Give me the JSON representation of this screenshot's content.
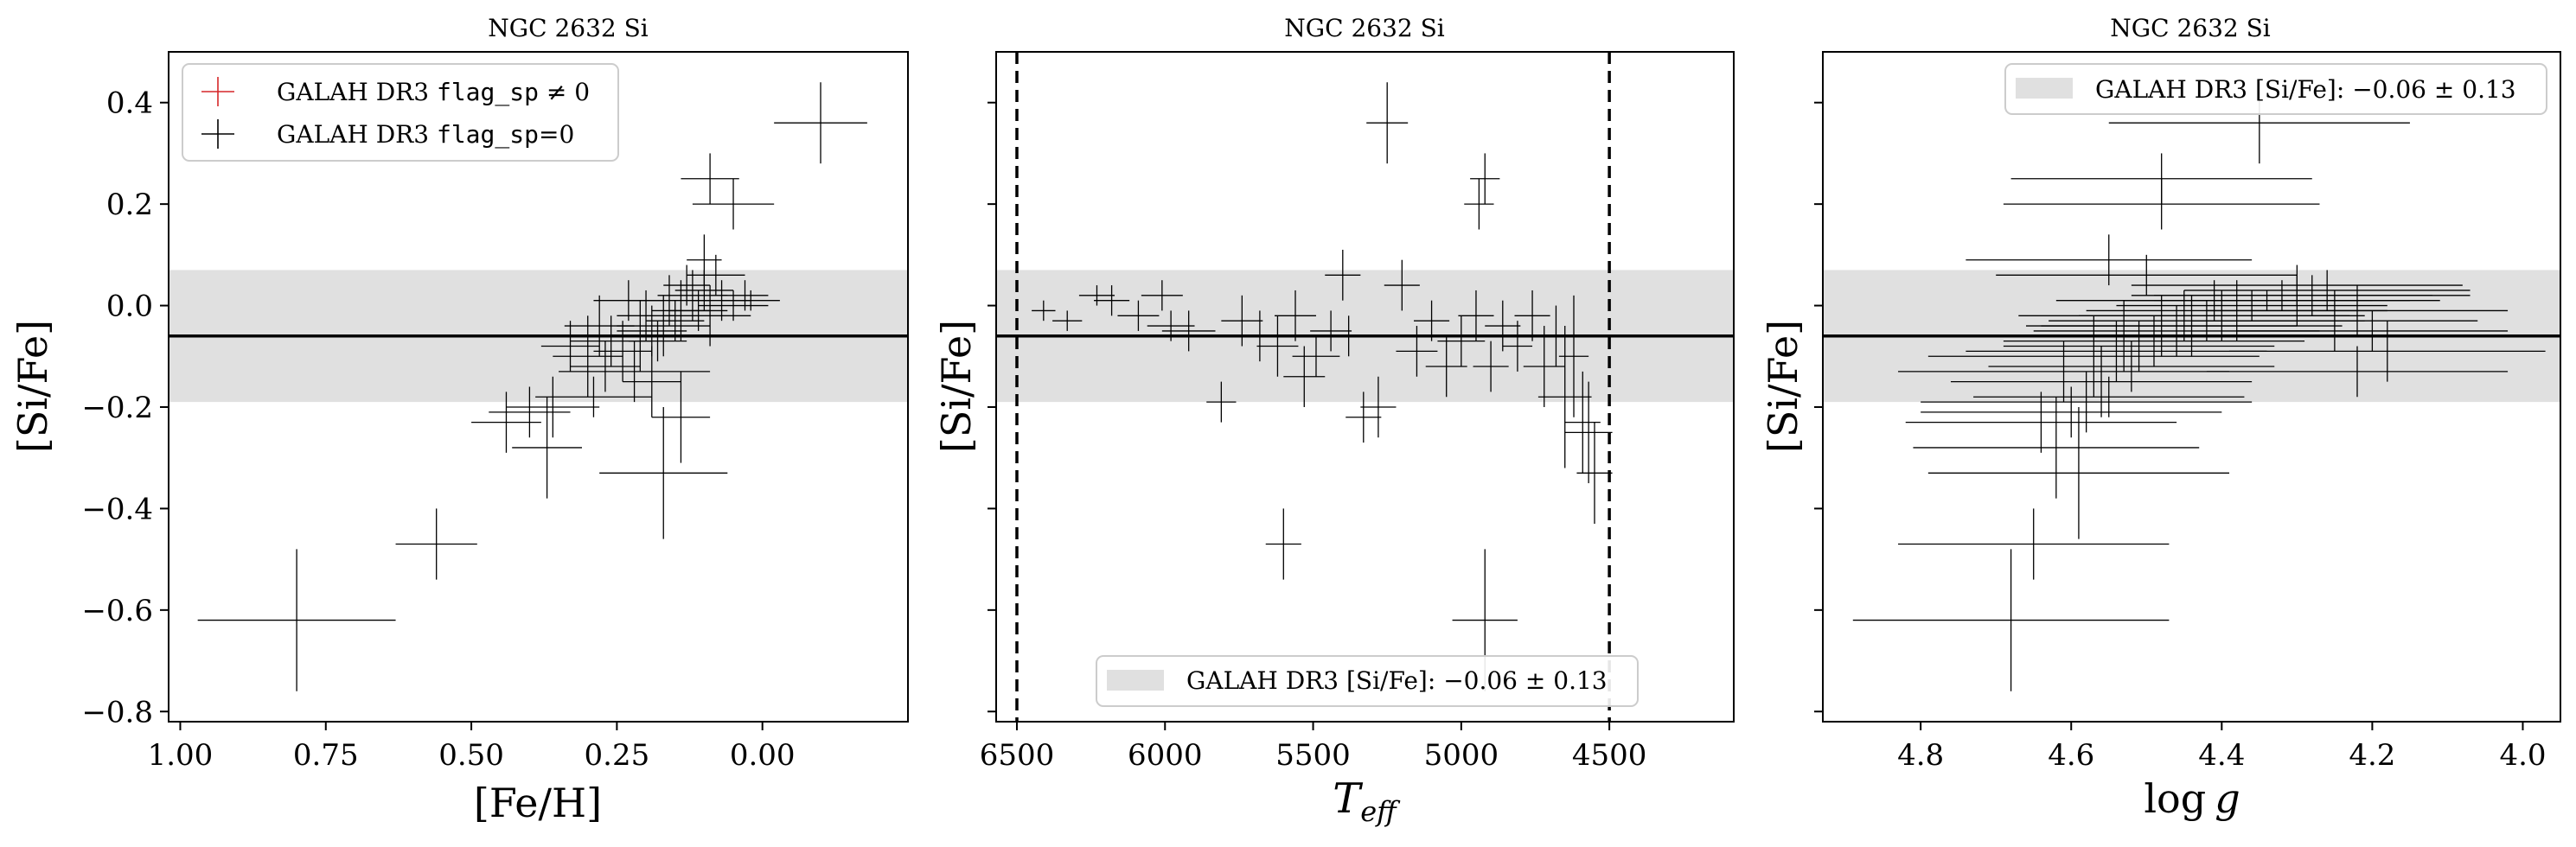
{
  "colors": {
    "flagged": "#d62728",
    "unflagged": "#000000",
    "band": "#e0e0e0",
    "mean_line": "#000000",
    "teff_limits": "#000000"
  },
  "chart_data": [
    {
      "type": "scatter",
      "title": "NGC 2632 Si",
      "xlabel": "[Fe/H]",
      "ylabel": "[Si/Fe]",
      "xlim": [
        1.02,
        -0.25
      ],
      "ylim": [
        -0.82,
        0.5
      ],
      "x_inverted": true,
      "xticks": [
        "1.00",
        "0.75",
        "0.50",
        "0.25",
        "0.00"
      ],
      "yticks": [
        "−0.8",
        "−0.6",
        "−0.4",
        "−0.2",
        "0.0",
        "0.2",
        "0.4"
      ],
      "reference": {
        "mean": -0.06,
        "sigma": 0.13
      },
      "legend": {
        "position": "upper left",
        "entries": [
          {
            "prefix": "GALAH DR3 ",
            "code": "flag_sp",
            "suffix": " ≠ 0",
            "color": "#d62728"
          },
          {
            "prefix": "GALAH DR3 ",
            "code": "flag_sp",
            "suffix": "=0",
            "color": "#000000"
          }
        ]
      },
      "series": [
        {
          "name": "GALAH DR3 flag_sp=0",
          "points": [
            {
              "x": 0.8,
              "y": -0.62,
              "xerr": 0.17,
              "yerr": 0.14
            },
            {
              "x": 0.56,
              "y": -0.47,
              "xerr": 0.07,
              "yerr": 0.07
            },
            {
              "x": 0.17,
              "y": -0.33,
              "xerr": 0.11,
              "yerr": 0.13
            },
            {
              "x": 0.37,
              "y": -0.28,
              "xerr": 0.06,
              "yerr": 0.1
            },
            {
              "x": 0.44,
              "y": -0.23,
              "xerr": 0.06,
              "yerr": 0.06
            },
            {
              "x": 0.4,
              "y": -0.21,
              "xerr": 0.07,
              "yerr": 0.05
            },
            {
              "x": 0.36,
              "y": -0.2,
              "xerr": 0.08,
              "yerr": 0.06
            },
            {
              "x": 0.29,
              "y": -0.18,
              "xerr": 0.1,
              "yerr": 0.04
            },
            {
              "x": 0.14,
              "y": -0.22,
              "xerr": 0.05,
              "yerr": 0.09
            },
            {
              "x": 0.22,
              "y": -0.13,
              "xerr": 0.13,
              "yerr": 0.06
            },
            {
              "x": 0.19,
              "y": -0.15,
              "xerr": 0.05,
              "yerr": 0.07
            },
            {
              "x": 0.3,
              "y": -0.1,
              "xerr": 0.06,
              "yerr": 0.08
            },
            {
              "x": 0.26,
              "y": -0.07,
              "xerr": 0.07,
              "yerr": 0.05
            },
            {
              "x": 0.24,
              "y": -0.09,
              "xerr": 0.05,
              "yerr": 0.06
            },
            {
              "x": 0.21,
              "y": -0.06,
              "xerr": 0.08,
              "yerr": 0.07
            },
            {
              "x": 0.19,
              "y": -0.05,
              "xerr": 0.06,
              "yerr": 0.05
            },
            {
              "x": 0.17,
              "y": -0.04,
              "xerr": 0.08,
              "yerr": 0.06
            },
            {
              "x": 0.2,
              "y": -0.02,
              "xerr": 0.05,
              "yerr": 0.05
            },
            {
              "x": 0.23,
              "y": 0.01,
              "xerr": 0.06,
              "yerr": 0.04
            },
            {
              "x": 0.16,
              "y": 0.01,
              "xerr": 0.07,
              "yerr": 0.05
            },
            {
              "x": 0.14,
              "y": -0.01,
              "xerr": 0.05,
              "yerr": 0.06
            },
            {
              "x": 0.12,
              "y": 0.02,
              "xerr": 0.06,
              "yerr": 0.05
            },
            {
              "x": 0.1,
              "y": 0.03,
              "xerr": 0.05,
              "yerr": 0.04
            },
            {
              "x": 0.09,
              "y": -0.02,
              "xerr": 0.07,
              "yerr": 0.06
            },
            {
              "x": 0.07,
              "y": 0.01,
              "xerr": 0.05,
              "yerr": 0.04
            },
            {
              "x": 0.05,
              "y": 0.0,
              "xerr": 0.06,
              "yerr": 0.03
            },
            {
              "x": 0.03,
              "y": 0.02,
              "xerr": 0.04,
              "yerr": 0.03
            },
            {
              "x": 0.02,
              "y": 0.01,
              "xerr": 0.05,
              "yerr": 0.02
            },
            {
              "x": 0.28,
              "y": -0.04,
              "xerr": 0.06,
              "yerr": 0.06
            },
            {
              "x": 0.33,
              "y": -0.08,
              "xerr": 0.05,
              "yerr": 0.05
            },
            {
              "x": 0.27,
              "y": -0.12,
              "xerr": 0.06,
              "yerr": 0.05
            },
            {
              "x": 0.18,
              "y": -0.07,
              "xerr": 0.05,
              "yerr": 0.04
            },
            {
              "x": 0.15,
              "y": -0.03,
              "xerr": 0.05,
              "yerr": 0.04
            },
            {
              "x": 0.11,
              "y": -0.01,
              "xerr": 0.05,
              "yerr": 0.04
            },
            {
              "x": 0.13,
              "y": 0.04,
              "xerr": 0.04,
              "yerr": 0.04
            },
            {
              "x": 0.08,
              "y": 0.06,
              "xerr": 0.05,
              "yerr": 0.04
            },
            {
              "x": 0.1,
              "y": 0.09,
              "xerr": 0.03,
              "yerr": 0.05
            },
            {
              "x": 0.09,
              "y": 0.25,
              "xerr": 0.05,
              "yerr": 0.05
            },
            {
              "x": 0.05,
              "y": 0.2,
              "xerr": 0.07,
              "yerr": 0.05
            },
            {
              "x": -0.1,
              "y": 0.36,
              "xerr": 0.08,
              "yerr": 0.08
            }
          ]
        }
      ]
    },
    {
      "type": "scatter",
      "title": "NGC 2632 Si",
      "xlabel_main": "T",
      "xlabel_sub": "eff",
      "ylabel": "[Si/Fe]",
      "xlim": [
        6570,
        4080
      ],
      "ylim": [
        -0.82,
        0.5
      ],
      "x_inverted": true,
      "xticks": [
        "6500",
        "6000",
        "5500",
        "5000",
        "4500"
      ],
      "vlines": [
        6500,
        4500
      ],
      "reference": {
        "mean": -0.06,
        "sigma": 0.13
      },
      "legend": {
        "position": "lower center",
        "prefix": "GALAH DR3 [Si/Fe]: ",
        "value": "−0.06 ± 0.13"
      },
      "series": [
        {
          "name": "GALAH DR3 flag_sp=0",
          "points": [
            {
              "x": 6410,
              "y": -0.01,
              "xerr": 40,
              "yerr": 0.02
            },
            {
              "x": 6330,
              "y": -0.03,
              "xerr": 50,
              "yerr": 0.02
            },
            {
              "x": 6230,
              "y": 0.02,
              "xerr": 60,
              "yerr": 0.02
            },
            {
              "x": 6180,
              "y": 0.01,
              "xerr": 60,
              "yerr": 0.03
            },
            {
              "x": 6090,
              "y": -0.02,
              "xerr": 70,
              "yerr": 0.03
            },
            {
              "x": 6010,
              "y": 0.02,
              "xerr": 70,
              "yerr": 0.03
            },
            {
              "x": 5980,
              "y": -0.04,
              "xerr": 80,
              "yerr": 0.03
            },
            {
              "x": 5920,
              "y": -0.05,
              "xerr": 90,
              "yerr": 0.04
            },
            {
              "x": 5810,
              "y": -0.19,
              "xerr": 50,
              "yerr": 0.04
            },
            {
              "x": 5740,
              "y": -0.03,
              "xerr": 70,
              "yerr": 0.05
            },
            {
              "x": 5680,
              "y": -0.06,
              "xerr": 80,
              "yerr": 0.05
            },
            {
              "x": 5620,
              "y": -0.08,
              "xerr": 70,
              "yerr": 0.06
            },
            {
              "x": 5600,
              "y": -0.47,
              "xerr": 60,
              "yerr": 0.07
            },
            {
              "x": 5560,
              "y": -0.02,
              "xerr": 70,
              "yerr": 0.05
            },
            {
              "x": 5530,
              "y": -0.14,
              "xerr": 70,
              "yerr": 0.06
            },
            {
              "x": 5490,
              "y": -0.1,
              "xerr": 80,
              "yerr": 0.04
            },
            {
              "x": 5440,
              "y": -0.05,
              "xerr": 70,
              "yerr": 0.04
            },
            {
              "x": 5400,
              "y": 0.06,
              "xerr": 60,
              "yerr": 0.05
            },
            {
              "x": 5380,
              "y": -0.06,
              "xerr": 80,
              "yerr": 0.04
            },
            {
              "x": 5330,
              "y": -0.22,
              "xerr": 60,
              "yerr": 0.05
            },
            {
              "x": 5280,
              "y": -0.2,
              "xerr": 60,
              "yerr": 0.06
            },
            {
              "x": 5250,
              "y": 0.36,
              "xerr": 70,
              "yerr": 0.08
            },
            {
              "x": 5200,
              "y": 0.04,
              "xerr": 60,
              "yerr": 0.05
            },
            {
              "x": 5150,
              "y": -0.09,
              "xerr": 70,
              "yerr": 0.05
            },
            {
              "x": 5100,
              "y": -0.03,
              "xerr": 60,
              "yerr": 0.04
            },
            {
              "x": 5050,
              "y": -0.12,
              "xerr": 70,
              "yerr": 0.06
            },
            {
              "x": 5000,
              "y": -0.07,
              "xerr": 80,
              "yerr": 0.05
            },
            {
              "x": 4950,
              "y": -0.02,
              "xerr": 60,
              "yerr": 0.05
            },
            {
              "x": 4920,
              "y": 0.25,
              "xerr": 50,
              "yerr": 0.05
            },
            {
              "x": 4940,
              "y": 0.2,
              "xerr": 50,
              "yerr": 0.05
            },
            {
              "x": 4920,
              "y": -0.62,
              "xerr": 110,
              "yerr": 0.14
            },
            {
              "x": 4900,
              "y": -0.12,
              "xerr": 60,
              "yerr": 0.05
            },
            {
              "x": 4860,
              "y": -0.04,
              "xerr": 60,
              "yerr": 0.05
            },
            {
              "x": 4810,
              "y": -0.08,
              "xerr": 50,
              "yerr": 0.05
            },
            {
              "x": 4760,
              "y": -0.02,
              "xerr": 60,
              "yerr": 0.05
            },
            {
              "x": 4720,
              "y": -0.12,
              "xerr": 70,
              "yerr": 0.08
            },
            {
              "x": 4680,
              "y": -0.06,
              "xerr": 60,
              "yerr": 0.06
            },
            {
              "x": 4650,
              "y": -0.18,
              "xerr": 90,
              "yerr": 0.14
            },
            {
              "x": 4620,
              "y": -0.1,
              "xerr": 50,
              "yerr": 0.12
            },
            {
              "x": 4590,
              "y": -0.23,
              "xerr": 60,
              "yerr": 0.1
            },
            {
              "x": 4570,
              "y": -0.25,
              "xerr": 80,
              "yerr": 0.1
            },
            {
              "x": 4550,
              "y": -0.33,
              "xerr": 60,
              "yerr": 0.1
            }
          ]
        }
      ]
    },
    {
      "type": "scatter",
      "title": "NGC 2632 Si",
      "xlabel_prefix": "log",
      "xlabel_var": "g",
      "ylabel": "[Si/Fe]",
      "xlim": [
        4.93,
        3.95
      ],
      "ylim": [
        -0.82,
        0.5
      ],
      "x_inverted": true,
      "xticks": [
        "4.8",
        "4.6",
        "4.4",
        "4.2",
        "4.0"
      ],
      "reference": {
        "mean": -0.06,
        "sigma": 0.13
      },
      "legend": {
        "position": "upper right",
        "prefix": "GALAH DR3 [Si/Fe]: ",
        "value": "−0.06 ± 0.13"
      },
      "series": [
        {
          "name": "GALAH DR3 flag_sp=0",
          "points": [
            {
              "x": 4.68,
              "y": -0.62,
              "xerr": 0.21,
              "yerr": 0.14
            },
            {
              "x": 4.65,
              "y": -0.47,
              "xerr": 0.18,
              "yerr": 0.07
            },
            {
              "x": 4.59,
              "y": -0.33,
              "xerr": 0.2,
              "yerr": 0.13
            },
            {
              "x": 4.62,
              "y": -0.28,
              "xerr": 0.19,
              "yerr": 0.1
            },
            {
              "x": 4.64,
              "y": -0.23,
              "xerr": 0.18,
              "yerr": 0.06
            },
            {
              "x": 4.6,
              "y": -0.21,
              "xerr": 0.2,
              "yerr": 0.05
            },
            {
              "x": 4.58,
              "y": -0.19,
              "xerr": 0.22,
              "yerr": 0.06
            },
            {
              "x": 4.55,
              "y": -0.18,
              "xerr": 0.18,
              "yerr": 0.04
            },
            {
              "x": 4.56,
              "y": -0.15,
              "xerr": 0.2,
              "yerr": 0.07
            },
            {
              "x": 4.61,
              "y": -0.13,
              "xerr": 0.22,
              "yerr": 0.06
            },
            {
              "x": 4.52,
              "y": -0.12,
              "xerr": 0.19,
              "yerr": 0.05
            },
            {
              "x": 4.57,
              "y": -0.1,
              "xerr": 0.22,
              "yerr": 0.08
            },
            {
              "x": 4.54,
              "y": -0.09,
              "xerr": 0.2,
              "yerr": 0.06
            },
            {
              "x": 4.51,
              "y": -0.08,
              "xerr": 0.18,
              "yerr": 0.05
            },
            {
              "x": 4.49,
              "y": -0.07,
              "xerr": 0.2,
              "yerr": 0.05
            },
            {
              "x": 4.53,
              "y": -0.06,
              "xerr": 0.21,
              "yerr": 0.07
            },
            {
              "x": 4.46,
              "y": -0.05,
              "xerr": 0.19,
              "yerr": 0.05
            },
            {
              "x": 4.44,
              "y": -0.04,
              "xerr": 0.2,
              "yerr": 0.06
            },
            {
              "x": 4.48,
              "y": -0.04,
              "xerr": 0.18,
              "yerr": 0.06
            },
            {
              "x": 4.42,
              "y": -0.03,
              "xerr": 0.21,
              "yerr": 0.04
            },
            {
              "x": 4.4,
              "y": -0.02,
              "xerr": 0.19,
              "yerr": 0.05
            },
            {
              "x": 4.45,
              "y": -0.02,
              "xerr": 0.22,
              "yerr": 0.05
            },
            {
              "x": 4.38,
              "y": -0.01,
              "xerr": 0.2,
              "yerr": 0.06
            },
            {
              "x": 4.36,
              "y": 0.0,
              "xerr": 0.18,
              "yerr": 0.03
            },
            {
              "x": 4.41,
              "y": 0.01,
              "xerr": 0.21,
              "yerr": 0.04
            },
            {
              "x": 4.34,
              "y": 0.01,
              "xerr": 0.19,
              "yerr": 0.02
            },
            {
              "x": 4.32,
              "y": 0.02,
              "xerr": 0.2,
              "yerr": 0.03
            },
            {
              "x": 4.3,
              "y": 0.01,
              "xerr": 0.19,
              "yerr": 0.05
            },
            {
              "x": 4.28,
              "y": 0.02,
              "xerr": 0.21,
              "yerr": 0.04
            },
            {
              "x": 4.26,
              "y": 0.03,
              "xerr": 0.19,
              "yerr": 0.04
            },
            {
              "x": 4.22,
              "y": -0.01,
              "xerr": 0.2,
              "yerr": 0.05
            },
            {
              "x": 4.2,
              "y": -0.05,
              "xerr": 0.18,
              "yerr": 0.04
            },
            {
              "x": 4.18,
              "y": -0.09,
              "xerr": 0.21,
              "yerr": 0.06
            },
            {
              "x": 4.22,
              "y": -0.13,
              "xerr": 0.2,
              "yerr": 0.05
            },
            {
              "x": 4.25,
              "y": -0.03,
              "xerr": 0.19,
              "yerr": 0.06
            },
            {
              "x": 4.3,
              "y": 0.04,
              "xerr": 0.22,
              "yerr": 0.04
            },
            {
              "x": 4.5,
              "y": 0.06,
              "xerr": 0.2,
              "yerr": 0.04
            },
            {
              "x": 4.55,
              "y": 0.09,
              "xerr": 0.19,
              "yerr": 0.05
            },
            {
              "x": 4.48,
              "y": 0.2,
              "xerr": 0.21,
              "yerr": 0.05
            },
            {
              "x": 4.48,
              "y": 0.25,
              "xerr": 0.2,
              "yerr": 0.05
            },
            {
              "x": 4.35,
              "y": 0.36,
              "xerr": 0.2,
              "yerr": 0.08
            }
          ]
        }
      ]
    }
  ]
}
